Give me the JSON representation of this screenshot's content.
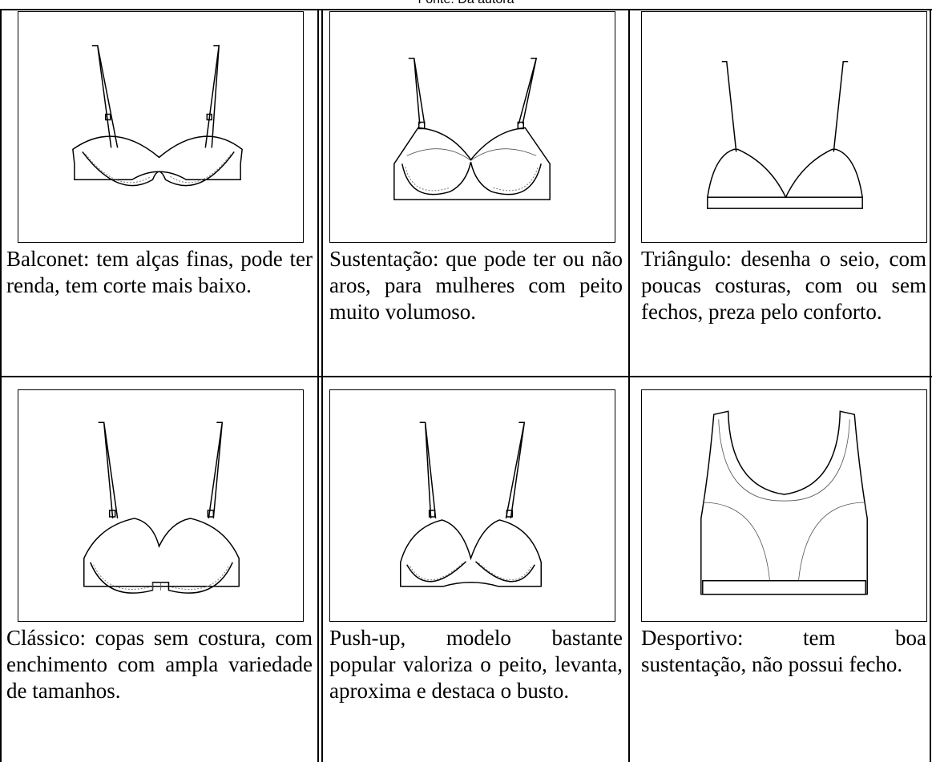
{
  "header": {
    "caption": "Fonte: Da autora"
  },
  "table": {
    "rows": [
      [
        "Balconet: tem alças finas, pode ter renda, tem corte mais baixo.",
        "Sustentação: que pode ter ou não aros, para mulheres com peito muito volumoso.",
        "Triângulo: desenha o seio, com poucas costuras, com ou sem fechos, preza pelo conforto."
      ],
      [
        "Clássico: copas sem costura, com enchimento com ampla variedade de tamanhos.",
        "Push-up, modelo bastante popular valoriza o peito, levanta, aproxima e destaca o busto.",
        "Desportivo: tem boa sustentação, não possui fecho."
      ]
    ]
  }
}
